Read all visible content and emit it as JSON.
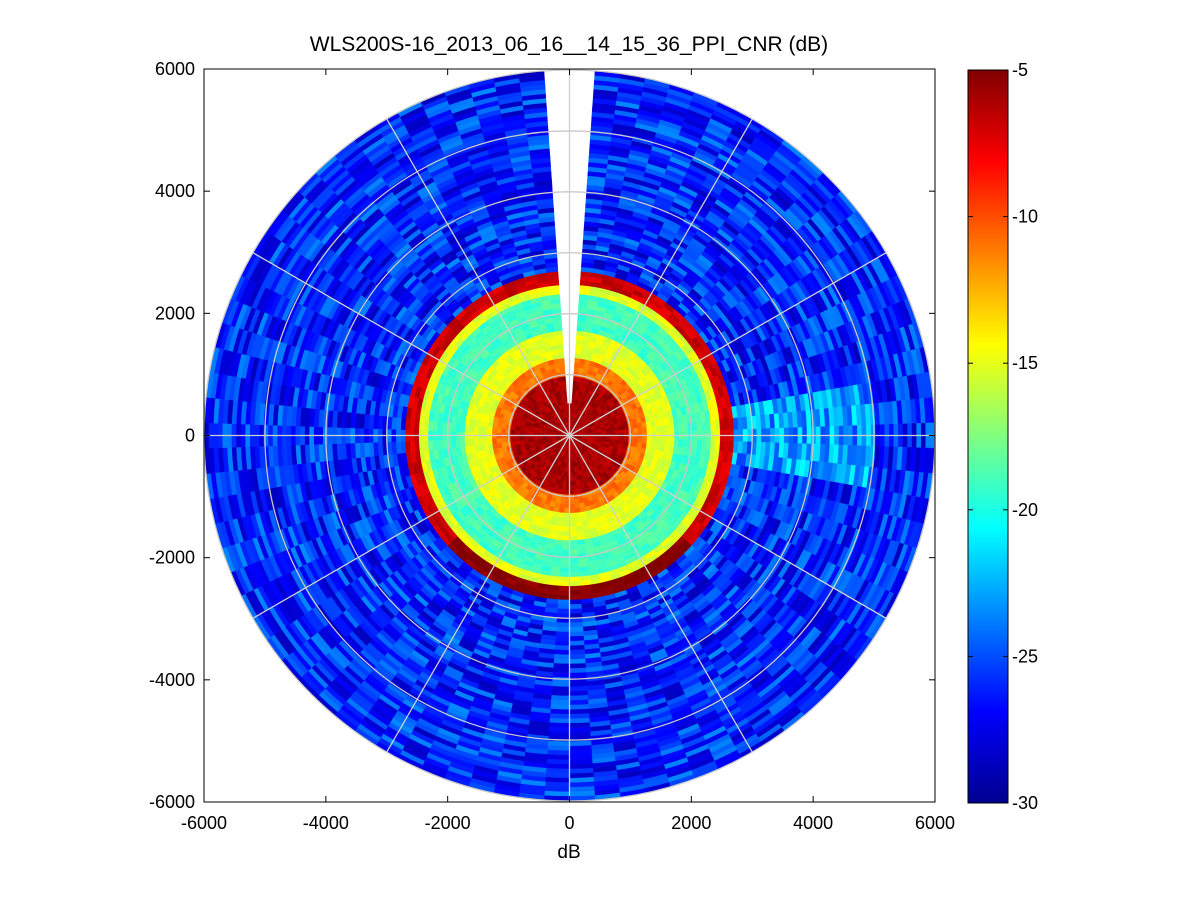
{
  "chart_data": {
    "type": "heatmap",
    "subtype": "polar-ppi",
    "title": "WLS200S-16_2013_06_16__14_15_36_PPI_CNR (dB)",
    "xlabel": "dB",
    "ylabel": "",
    "xlim": [
      -6000,
      6000
    ],
    "ylim": [
      -6000,
      6000
    ],
    "xticks": [
      "-6000",
      "-4000",
      "-2000",
      "0",
      "2000",
      "4000",
      "6000"
    ],
    "yticks": [
      "6000",
      "4000",
      "2000",
      "0",
      "-2000",
      "-4000",
      "-6000"
    ],
    "max_range": 6000,
    "grid_ring_radii": [
      1000,
      2000,
      3000,
      4000,
      5000,
      6000
    ],
    "grid_spoke_angles_deg": [
      0,
      30,
      60,
      90,
      120,
      150,
      180,
      210,
      240,
      270,
      300,
      330
    ],
    "grid": true,
    "missing_sector_azimuth_deg": [
      -4,
      4
    ],
    "missing_sector_min_range": 500,
    "colorbar": {
      "colormap": "jet",
      "clim": [
        -30,
        -5
      ],
      "ticks": [
        "-5",
        "-10",
        "-15",
        "-20",
        "-25",
        "-30"
      ]
    },
    "radial_profile_db": [
      {
        "range": [
          0,
          1000
        ],
        "cnr": -6
      },
      {
        "range": [
          1000,
          1300
        ],
        "cnr": -11
      },
      {
        "range": [
          1300,
          1700
        ],
        "cnr": -15
      },
      {
        "range": [
          1700,
          2300
        ],
        "cnr": -19
      },
      {
        "range": [
          2300,
          2450
        ],
        "cnr": -15
      },
      {
        "range": [
          2450,
          2700
        ],
        "cnr": -7
      },
      {
        "range": [
          2700,
          6000
        ],
        "cnr": -26
      }
    ]
  }
}
